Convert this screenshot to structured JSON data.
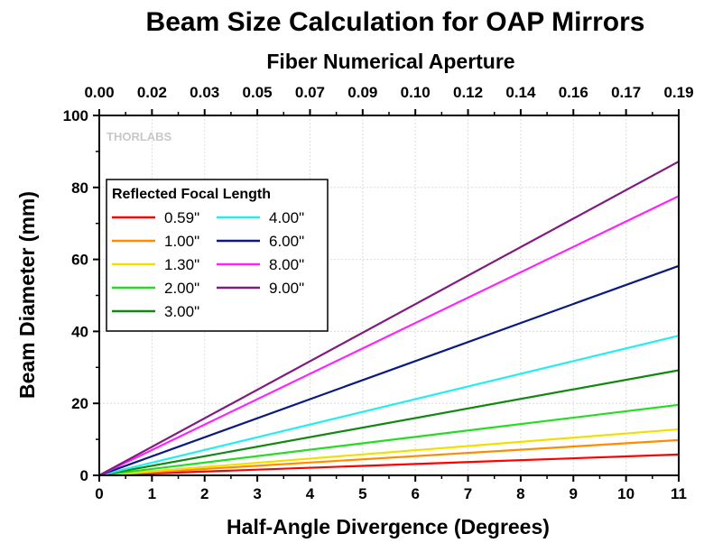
{
  "chart_data": {
    "type": "line",
    "title": "Beam Size Calculation for OAP Mirrors",
    "xlabel": "Half-Angle Divergence (Degrees)",
    "ylabel": "Beam Diameter (mm)",
    "x2label": "Fiber Numerical Aperture",
    "xlim": [
      0,
      11
    ],
    "ylim": [
      0,
      100
    ],
    "x_ticks": [
      "0",
      "1",
      "2",
      "3",
      "4",
      "5",
      "6",
      "7",
      "8",
      "9",
      "10",
      "11"
    ],
    "y_ticks": [
      "0",
      "20",
      "40",
      "60",
      "80",
      "100"
    ],
    "x2_ticks": [
      "0.00",
      "0.02",
      "0.03",
      "0.05",
      "0.07",
      "0.09",
      "0.10",
      "0.12",
      "0.14",
      "0.16",
      "0.17",
      "0.19"
    ],
    "grid": true,
    "legend_title": "Reflected Focal Length",
    "legend_position": "upper-left",
    "watermark": "THORLABS",
    "series": [
      {
        "name": "0.59\"",
        "color": "#ff0000",
        "x": [
          0,
          11
        ],
        "y": [
          0,
          5.8
        ]
      },
      {
        "name": "1.00\"",
        "color": "#ff8c00",
        "x": [
          0,
          11
        ],
        "y": [
          0,
          9.8
        ]
      },
      {
        "name": "1.30\"",
        "color": "#f0e000",
        "x": [
          0,
          11
        ],
        "y": [
          0,
          12.8
        ]
      },
      {
        "name": "2.00\"",
        "color": "#22dd22",
        "x": [
          0,
          11
        ],
        "y": [
          0,
          19.6
        ]
      },
      {
        "name": "3.00\"",
        "color": "#118811",
        "x": [
          0,
          11
        ],
        "y": [
          0,
          29.2
        ]
      },
      {
        "name": "4.00\"",
        "color": "#22eeee",
        "x": [
          0,
          11
        ],
        "y": [
          0,
          38.8
        ]
      },
      {
        "name": "6.00\"",
        "color": "#0a1a80",
        "x": [
          0,
          11
        ],
        "y": [
          0,
          58.2
        ]
      },
      {
        "name": "8.00\"",
        "color": "#ff22ff",
        "x": [
          0,
          11
        ],
        "y": [
          0,
          77.6
        ]
      },
      {
        "name": "9.00\"",
        "color": "#801c80",
        "x": [
          0,
          11
        ],
        "y": [
          0,
          87.2
        ]
      }
    ]
  }
}
